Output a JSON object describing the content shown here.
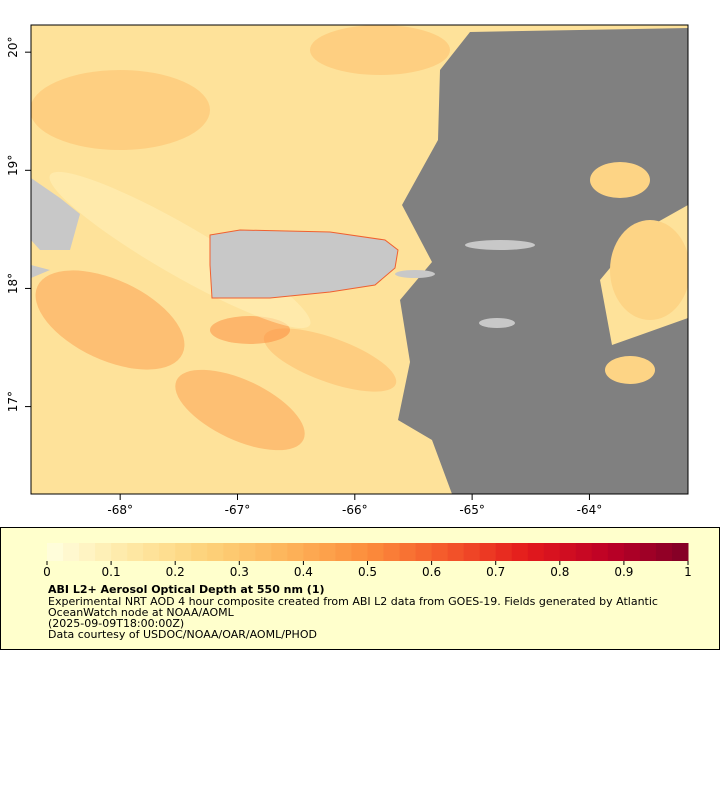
{
  "map": {
    "xlim": [
      -68.76,
      -63.16
    ],
    "ylim": [
      16.26,
      20.23
    ],
    "xticks": [
      {
        "value": -68,
        "label": "-68°"
      },
      {
        "value": -67,
        "label": "-67°"
      },
      {
        "value": -66,
        "label": "-66°"
      },
      {
        "value": -65,
        "label": "-65°"
      },
      {
        "value": -64,
        "label": "-64°"
      }
    ],
    "yticks": [
      {
        "value": 17,
        "label": "17°"
      },
      {
        "value": 18,
        "label": "18°"
      },
      {
        "value": 19,
        "label": "19°"
      },
      {
        "value": 20,
        "label": "20°"
      }
    ]
  },
  "colorbar": {
    "lim": [
      0,
      1
    ],
    "ticks": [
      0,
      0.1,
      0.2,
      0.3,
      0.4,
      0.5,
      0.6,
      0.7,
      0.8,
      0.9,
      1
    ],
    "colors": [
      "#ffffe0",
      "#fee9a6",
      "#fdd27a",
      "#fdb45a",
      "#fc8d3c",
      "#f4572a",
      "#e31a1c",
      "#bd0026",
      "#800026"
    ],
    "steps": 40
  },
  "legend": {
    "title": "ABI L2+ Aerosol Optical Depth at 550 nm (1)",
    "lines": [
      "Experimental NRT AOD 4 hour composite created from ABI L2 data from GOES-19. Fields generated by Atlantic",
      "OceanWatch node at NOAA/AOML",
      "(2025-09-09T18:00:00Z)",
      "Data courtesy of USDOC/NOAA/OAR/AOML/PHOD"
    ]
  }
}
